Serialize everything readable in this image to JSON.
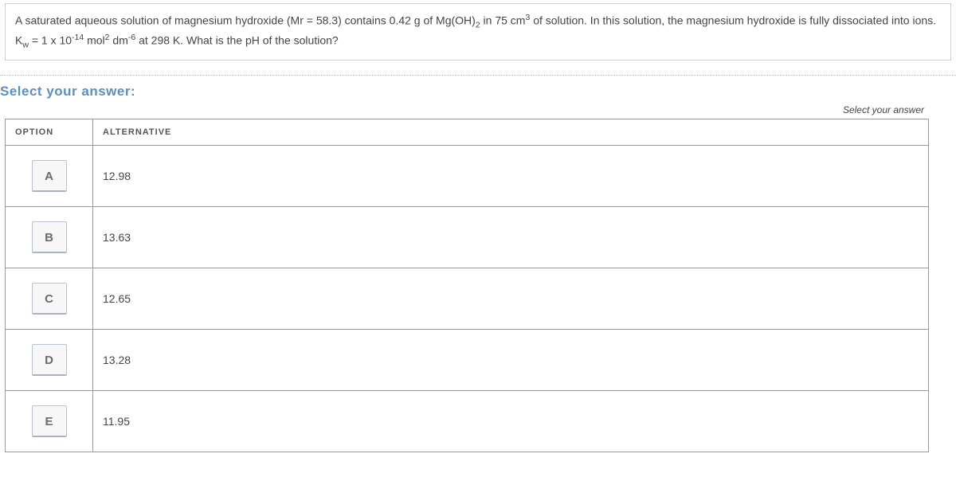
{
  "question": {
    "line1_pre": "A saturated aqueous solution of magnesium hydroxide (Mr = 58.3) contains 0.42 g of Mg(OH)",
    "line1_sub1": "2",
    "line1_mid": " in 75 cm",
    "line1_sup1": "3",
    "line1_post": " of solution. In this solution, the magnesium hydroxide is fully dissociated into ions.",
    "line2_pre": "K",
    "line2_sub1": "w",
    "line2_mid1": " = 1 x 10",
    "line2_sup1": "-14",
    "line2_mid2": " mol",
    "line2_sup2": "2",
    "line2_mid3": " dm",
    "line2_sup3": "-6",
    "line2_post": " at 298 K. What is the pH of the solution?"
  },
  "headings": {
    "select": "Select your answer:",
    "hint": "Select your answer"
  },
  "table": {
    "col_option": "OPTION",
    "col_alternative": "ALTERNATIVE",
    "rows": [
      {
        "opt": "A",
        "alt": "12.98"
      },
      {
        "opt": "B",
        "alt": "13.63"
      },
      {
        "opt": "C",
        "alt": "12.65"
      },
      {
        "opt": "D",
        "alt": "13.28"
      },
      {
        "opt": "E",
        "alt": "11.95"
      }
    ]
  }
}
